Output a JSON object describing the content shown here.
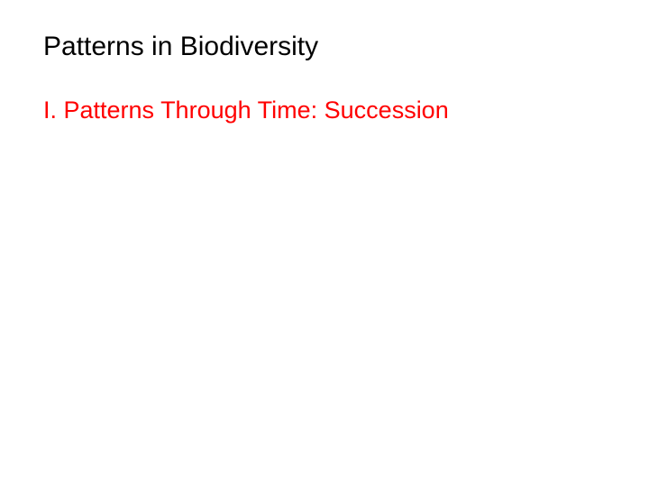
{
  "slide": {
    "title": "Patterns in Biodiversity",
    "subtitle": "I. Patterns Through Time: Succession",
    "title_color": "#000000",
    "subtitle_color": "#ff0000",
    "background_color": "#ffffff",
    "title_fontsize": 30,
    "subtitle_fontsize": 27,
    "font_family": "Arial"
  }
}
